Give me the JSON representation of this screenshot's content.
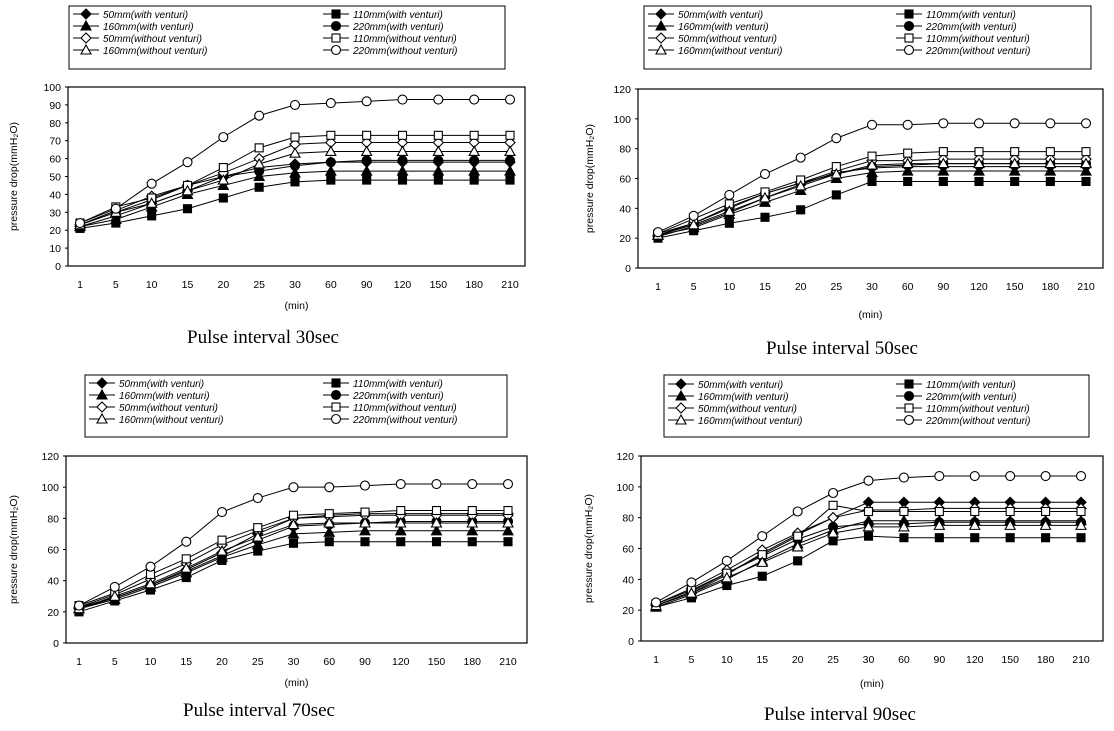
{
  "chart_data": [
    {
      "type": "line",
      "caption": "Pulse interval 30sec",
      "xlabel": "(min)",
      "ylabel": "pressure drop(mmH₂O)",
      "categories": [
        "1",
        "5",
        "10",
        "15",
        "20",
        "25",
        "30",
        "60",
        "90",
        "120",
        "150",
        "180",
        "210"
      ],
      "ylim": [
        0,
        100
      ],
      "yticks": [
        0,
        10,
        20,
        30,
        40,
        50,
        60,
        70,
        80,
        90,
        100
      ],
      "grid": false,
      "legend_position": "top",
      "series": [
        {
          "name": "50mm(with venturi)",
          "marker": "filled-diamond",
          "values": [
            22,
            28,
            35,
            42,
            50,
            55,
            57,
            58,
            58,
            58,
            58,
            58,
            58
          ]
        },
        {
          "name": "110mm(with venturi)",
          "marker": "filled-square",
          "values": [
            21,
            24,
            28,
            32,
            38,
            44,
            47,
            48,
            48,
            48,
            48,
            48,
            48
          ]
        },
        {
          "name": "160mm(with venturi)",
          "marker": "filled-triangle",
          "values": [
            22,
            26,
            33,
            40,
            45,
            50,
            52,
            53,
            53,
            53,
            53,
            53,
            53
          ]
        },
        {
          "name": "220mm(with venturi)",
          "marker": "filled-circle",
          "values": [
            23,
            30,
            37,
            45,
            50,
            53,
            56,
            58,
            59,
            59,
            59,
            59,
            59
          ]
        },
        {
          "name": "50mm(without venturi)",
          "marker": "open-diamond",
          "values": [
            23,
            31,
            39,
            45,
            52,
            60,
            68,
            69,
            69,
            69,
            69,
            69,
            69
          ]
        },
        {
          "name": "110mm(without venturi)",
          "marker": "open-square",
          "values": [
            24,
            33,
            38,
            45,
            55,
            66,
            72,
            73,
            73,
            73,
            73,
            73,
            73
          ]
        },
        {
          "name": "160mm(without venturi)",
          "marker": "open-triangle",
          "values": [
            23,
            30,
            35,
            42,
            48,
            57,
            63,
            64,
            64,
            64,
            64,
            64,
            64
          ]
        },
        {
          "name": "220mm(without venturi)",
          "marker": "open-circle",
          "values": [
            24,
            32,
            46,
            58,
            72,
            84,
            90,
            91,
            92,
            93,
            93,
            93,
            93
          ]
        }
      ]
    },
    {
      "type": "line",
      "caption": "Pulse interval 50sec",
      "xlabel": "(min)",
      "ylabel": "pressure drop(mmH₂O)",
      "categories": [
        "1",
        "5",
        "10",
        "15",
        "20",
        "25",
        "30",
        "60",
        "90",
        "120",
        "150",
        "180",
        "210"
      ],
      "ylim": [
        0,
        120
      ],
      "yticks": [
        0,
        20,
        40,
        60,
        80,
        100,
        120
      ],
      "grid": false,
      "legend_position": "top",
      "series": [
        {
          "name": "50mm(with venturi)",
          "marker": "filled-diamond",
          "values": [
            21,
            28,
            37,
            47,
            56,
            64,
            67,
            68,
            68,
            68,
            68,
            68,
            68
          ]
        },
        {
          "name": "110mm(with venturi)",
          "marker": "filled-square",
          "values": [
            20,
            25,
            30,
            34,
            39,
            49,
            58,
            58,
            58,
            58,
            58,
            58,
            58
          ]
        },
        {
          "name": "160mm(with venturi)",
          "marker": "filled-triangle",
          "values": [
            22,
            27,
            36,
            44,
            52,
            60,
            64,
            65,
            65,
            65,
            65,
            65,
            65
          ]
        },
        {
          "name": "220mm(with venturi)",
          "marker": "filled-circle",
          "values": [
            23,
            30,
            40,
            50,
            57,
            63,
            68,
            69,
            70,
            70,
            70,
            70,
            70
          ]
        },
        {
          "name": "50mm(without venturi)",
          "marker": "open-diamond",
          "values": [
            22,
            30,
            41,
            50,
            57,
            65,
            72,
            72,
            73,
            73,
            73,
            73,
            73
          ]
        },
        {
          "name": "110mm(without venturi)",
          "marker": "open-square",
          "values": [
            23,
            33,
            43,
            51,
            59,
            68,
            75,
            77,
            78,
            78,
            78,
            78,
            78
          ]
        },
        {
          "name": "160mm(without venturi)",
          "marker": "open-triangle",
          "values": [
            22,
            29,
            38,
            47,
            55,
            63,
            69,
            70,
            70,
            70,
            70,
            70,
            70
          ]
        },
        {
          "name": "220mm(without venturi)",
          "marker": "open-circle",
          "values": [
            24,
            35,
            49,
            63,
            74,
            87,
            96,
            96,
            97,
            97,
            97,
            97,
            97
          ]
        }
      ]
    },
    {
      "type": "line",
      "caption": "Pulse interval 70sec",
      "xlabel": "(min)",
      "ylabel": "pressure drop(mmH₂O)",
      "categories": [
        "1",
        "5",
        "10",
        "15",
        "20",
        "25",
        "30",
        "60",
        "90",
        "120",
        "150",
        "180",
        "210"
      ],
      "ylim": [
        0,
        120
      ],
      "yticks": [
        0,
        20,
        40,
        60,
        80,
        100,
        120
      ],
      "grid": false,
      "legend_position": "top",
      "series": [
        {
          "name": "50mm(with venturi)",
          "marker": "filled-diamond",
          "values": [
            22,
            29,
            37,
            47,
            58,
            70,
            80,
            82,
            83,
            83,
            83,
            83,
            83
          ]
        },
        {
          "name": "110mm(with venturi)",
          "marker": "filled-square",
          "values": [
            20,
            27,
            34,
            42,
            53,
            59,
            64,
            65,
            65,
            65,
            65,
            65,
            65
          ]
        },
        {
          "name": "160mm(with venturi)",
          "marker": "filled-triangle",
          "values": [
            22,
            28,
            36,
            45,
            55,
            63,
            70,
            71,
            72,
            72,
            72,
            72,
            72
          ]
        },
        {
          "name": "220mm(with venturi)",
          "marker": "filled-circle",
          "values": [
            23,
            29,
            37,
            46,
            56,
            66,
            75,
            76,
            77,
            78,
            78,
            78,
            78
          ]
        },
        {
          "name": "50mm(without venturi)",
          "marker": "open-diamond",
          "values": [
            23,
            31,
            41,
            51,
            63,
            72,
            80,
            81,
            82,
            82,
            82,
            82,
            82
          ]
        },
        {
          "name": "110mm(without venturi)",
          "marker": "open-square",
          "values": [
            24,
            32,
            44,
            54,
            66,
            74,
            82,
            83,
            84,
            85,
            85,
            85,
            85
          ]
        },
        {
          "name": "160mm(without venturi)",
          "marker": "open-triangle",
          "values": [
            22,
            30,
            38,
            48,
            59,
            68,
            76,
            77,
            77,
            77,
            77,
            77,
            77
          ]
        },
        {
          "name": "220mm(without venturi)",
          "marker": "open-circle",
          "values": [
            24,
            36,
            49,
            65,
            84,
            93,
            100,
            100,
            101,
            102,
            102,
            102,
            102
          ]
        }
      ]
    },
    {
      "type": "line",
      "caption": "Pulse interval 90sec",
      "xlabel": "(min)",
      "ylabel": "pressure drop(mmH₂O)",
      "categories": [
        "1",
        "5",
        "10",
        "15",
        "20",
        "25",
        "30",
        "60",
        "90",
        "120",
        "150",
        "180",
        "210"
      ],
      "ylim": [
        0,
        120
      ],
      "yticks": [
        0,
        20,
        40,
        60,
        80,
        100,
        120
      ],
      "grid": false,
      "legend_position": "top",
      "series": [
        {
          "name": "50mm(with venturi)",
          "marker": "filled-diamond",
          "values": [
            23,
            31,
            43,
            57,
            69,
            80,
            90,
            90,
            90,
            90,
            90,
            90,
            90
          ]
        },
        {
          "name": "110mm(with venturi)",
          "marker": "filled-square",
          "values": [
            22,
            28,
            36,
            42,
            52,
            65,
            68,
            67,
            67,
            67,
            67,
            67,
            67
          ]
        },
        {
          "name": "160mm(with venturi)",
          "marker": "filled-triangle",
          "values": [
            22,
            30,
            40,
            52,
            63,
            72,
            78,
            78,
            78,
            78,
            78,
            78,
            78
          ]
        },
        {
          "name": "220mm(with venturi)",
          "marker": "filled-circle",
          "values": [
            23,
            32,
            44,
            55,
            66,
            74,
            76,
            76,
            77,
            77,
            77,
            77,
            77
          ]
        },
        {
          "name": "50mm(without venturi)",
          "marker": "open-diamond",
          "values": [
            24,
            34,
            46,
            59,
            70,
            80,
            85,
            85,
            86,
            86,
            86,
            86,
            86
          ]
        },
        {
          "name": "110mm(without venturi)",
          "marker": "open-square",
          "values": [
            24,
            33,
            44,
            56,
            68,
            88,
            84,
            84,
            84,
            84,
            84,
            84,
            84
          ]
        },
        {
          "name": "160mm(without venturi)",
          "marker": "open-triangle",
          "values": [
            23,
            31,
            41,
            51,
            61,
            70,
            74,
            74,
            75,
            75,
            75,
            75,
            75
          ]
        },
        {
          "name": "220mm(without venturi)",
          "marker": "open-circle",
          "values": [
            25,
            38,
            52,
            68,
            84,
            96,
            104,
            106,
            107,
            107,
            107,
            107,
            107
          ]
        }
      ]
    }
  ]
}
